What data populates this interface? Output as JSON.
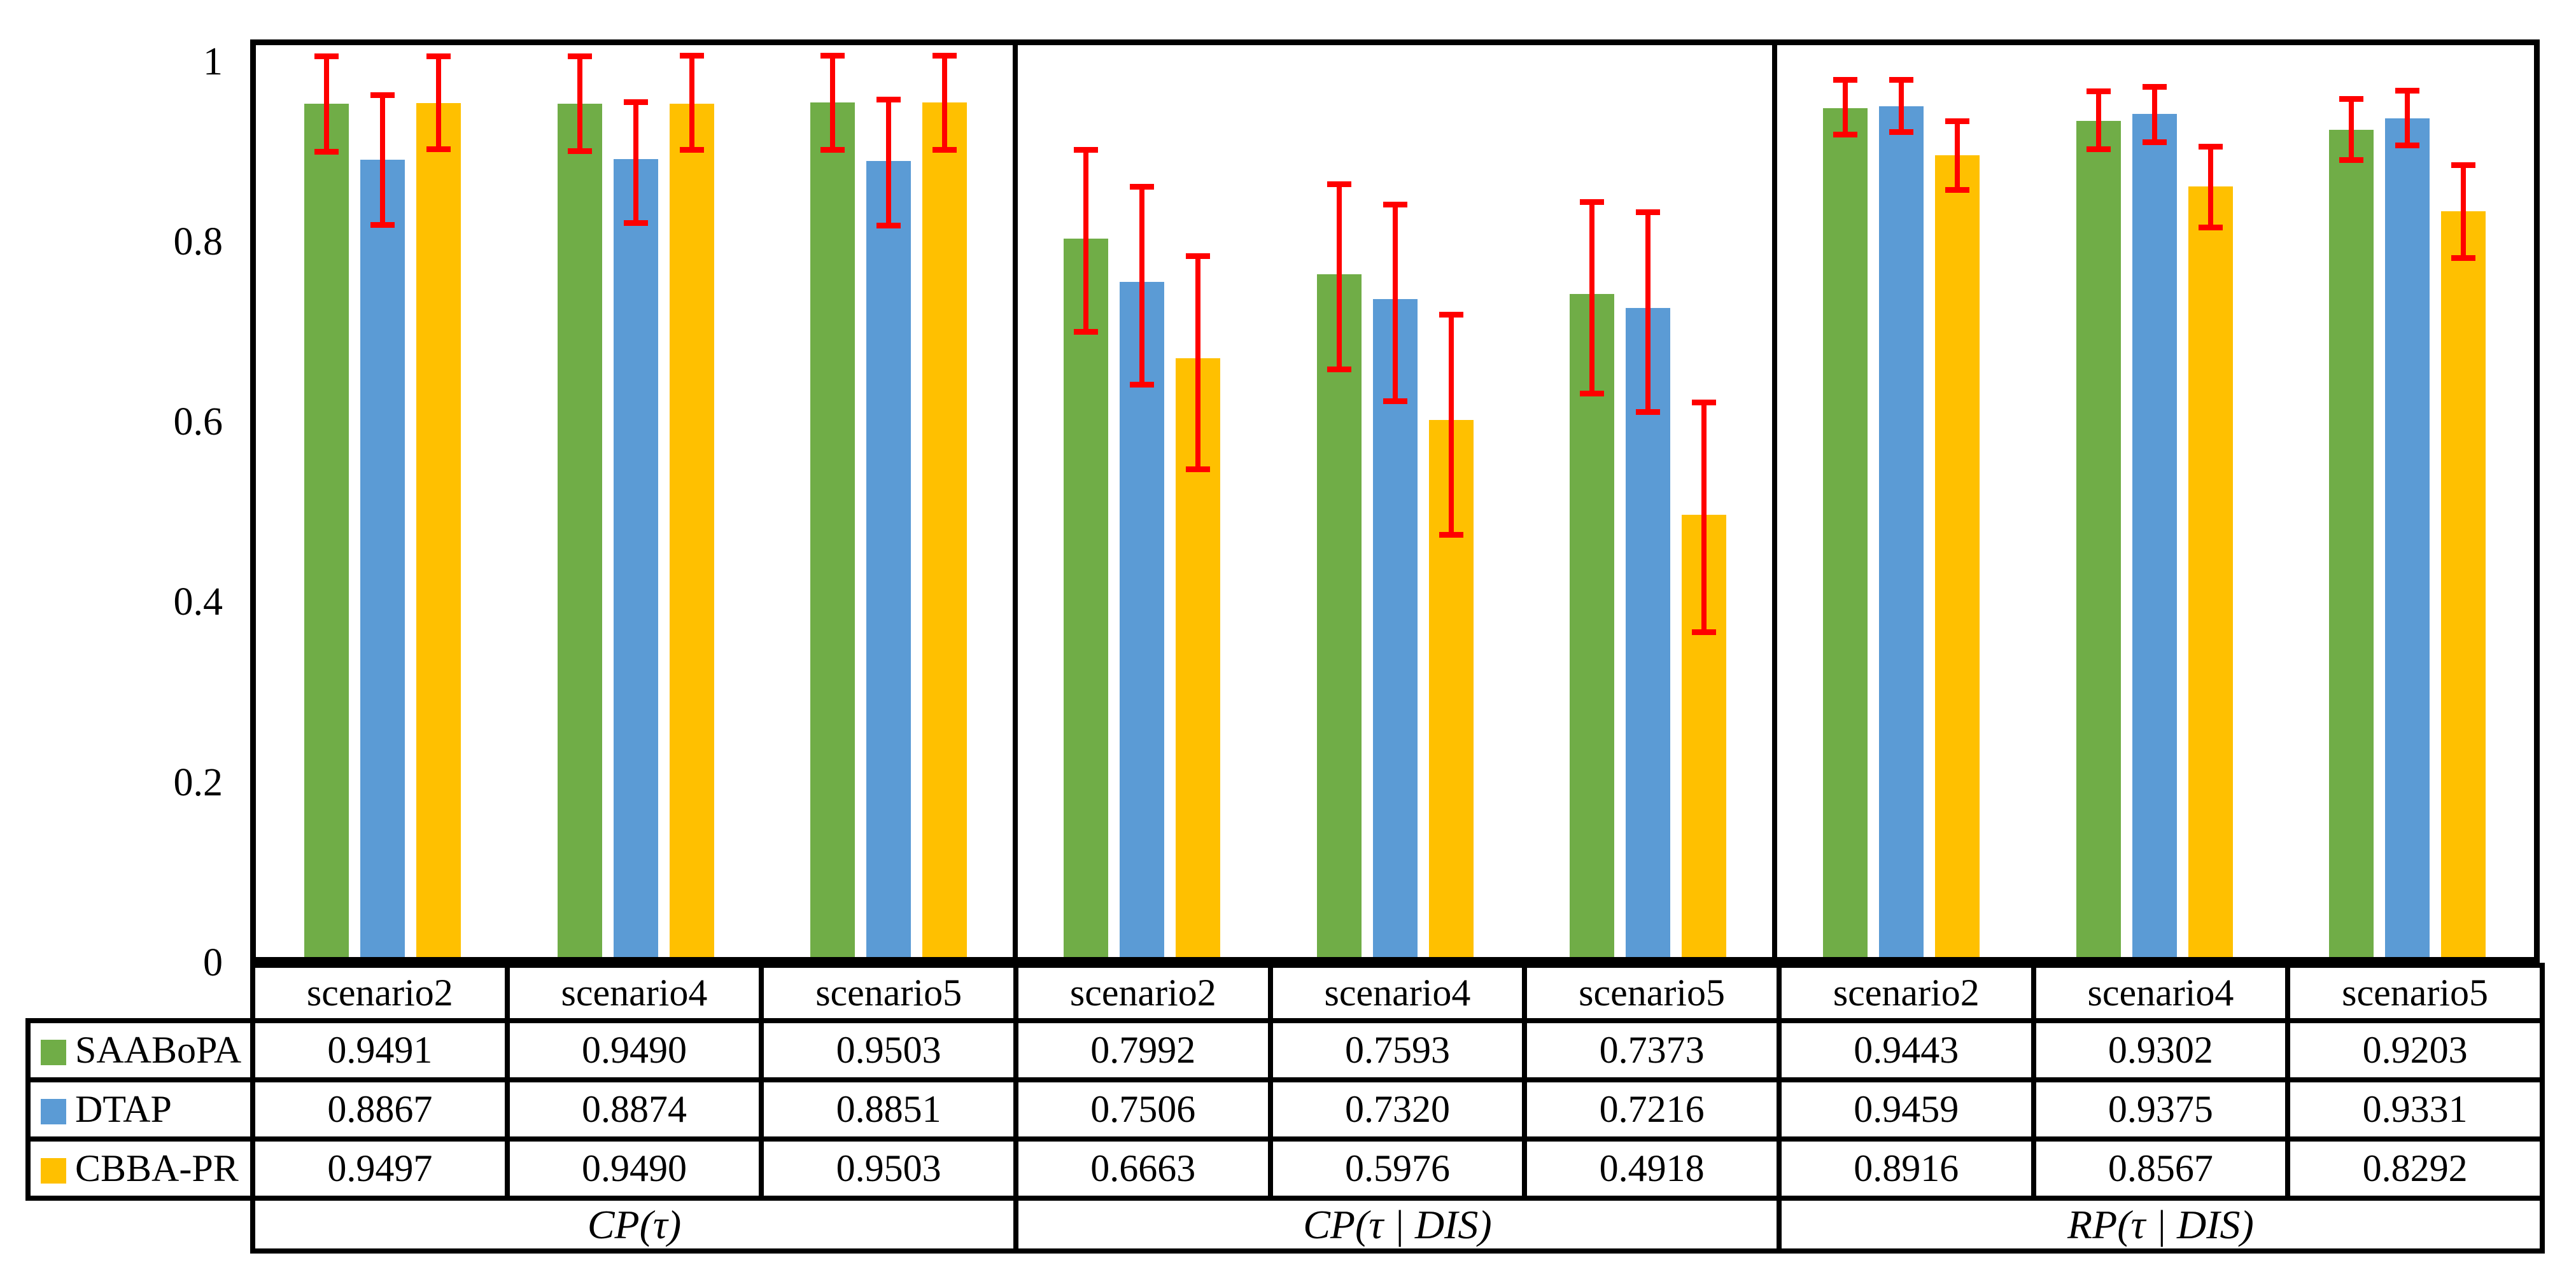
{
  "chart_data": {
    "type": "bar",
    "title": "",
    "xlabel": "",
    "ylabel": "",
    "group_labels": [
      "CP(τ)",
      "CP(τ | DIS)",
      "RP(τ | DIS)"
    ],
    "categories": [
      "scenario2",
      "scenario4",
      "scenario5",
      "scenario2",
      "scenario4",
      "scenario5",
      "scenario2",
      "scenario4",
      "scenario5"
    ],
    "series": [
      {
        "name": "SAABoPA",
        "color": "#70AD47",
        "values": [
          0.9491,
          0.949,
          0.9503,
          0.7992,
          0.7593,
          0.7373,
          0.9443,
          0.9302,
          0.9203
        ],
        "error_high": [
          1.003,
          1.003,
          1.004,
          0.899,
          0.861,
          0.841,
          0.977,
          0.964,
          0.956
        ],
        "error_low": [
          0.894,
          0.895,
          0.896,
          0.694,
          0.652,
          0.625,
          0.913,
          0.897,
          0.885
        ]
      },
      {
        "name": "DTAP",
        "color": "#5B9BD5",
        "values": [
          0.8867,
          0.8874,
          0.8851,
          0.7506,
          0.732,
          0.7216,
          0.9459,
          0.9375,
          0.9331
        ],
        "error_high": [
          0.96,
          0.952,
          0.955,
          0.858,
          0.838,
          0.83,
          0.977,
          0.969,
          0.965
        ],
        "error_low": [
          0.813,
          0.815,
          0.812,
          0.635,
          0.617,
          0.605,
          0.916,
          0.905,
          0.901
        ]
      },
      {
        "name": "CBBA-PR",
        "color": "#FFC000",
        "values": [
          0.9497,
          0.949,
          0.9503,
          0.6663,
          0.5976,
          0.4918,
          0.8916,
          0.8567,
          0.8292
        ],
        "error_high": [
          1.003,
          1.004,
          1.004,
          0.781,
          0.716,
          0.618,
          0.931,
          0.903,
          0.882
        ],
        "error_low": [
          0.897,
          0.896,
          0.896,
          0.541,
          0.468,
          0.36,
          0.852,
          0.81,
          0.776
        ]
      }
    ],
    "error_bar_color": "#FF0000",
    "ylim": [
      0,
      1.026
    ],
    "yticks": [
      0,
      0.2,
      0.4,
      0.6,
      0.8,
      1
    ],
    "ytick_labels": [
      "0",
      "0.2",
      "0.4",
      "0.6",
      "0.8",
      "1"
    ],
    "grid": false,
    "legend_position": "table-left-column"
  },
  "table": {
    "scenario_headers": [
      "scenario2",
      "scenario4",
      "scenario5",
      "scenario2",
      "scenario4",
      "scenario5",
      "scenario2",
      "scenario4",
      "scenario5"
    ],
    "rows": [
      {
        "name": "SAABoPA",
        "color": "#70AD47",
        "cells": [
          "0.9491",
          "0.9490",
          "0.9503",
          "0.7992",
          "0.7593",
          "0.7373",
          "0.9443",
          "0.9302",
          "0.9203"
        ]
      },
      {
        "name": "DTAP",
        "color": "#5B9BD5",
        "cells": [
          "0.8867",
          "0.8874",
          "0.8851",
          "0.7506",
          "0.7320",
          "0.7216",
          "0.9459",
          "0.9375",
          "0.9331"
        ]
      },
      {
        "name": "CBBA-PR",
        "color": "#FFC000",
        "cells": [
          "0.9497",
          "0.9490",
          "0.9503",
          "0.6663",
          "0.5976",
          "0.4918",
          "0.8916",
          "0.8567",
          "0.8292"
        ]
      }
    ],
    "group_labels": [
      "CP(τ)",
      "CP(τ | DIS)",
      "RP(τ | DIS)"
    ]
  }
}
